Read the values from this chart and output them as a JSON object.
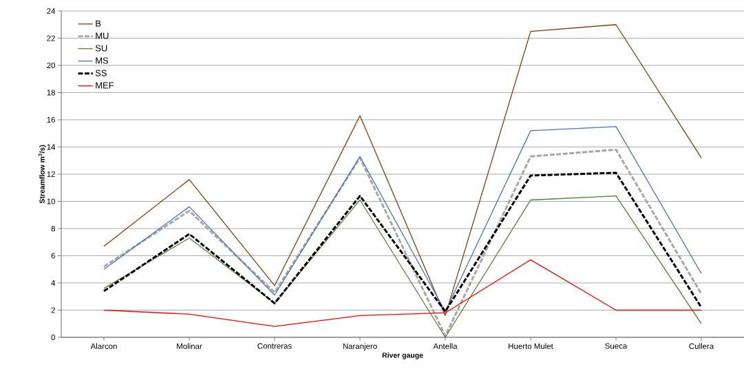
{
  "chart_data": {
    "type": "line",
    "xlabel": "River gauge",
    "ylabel": "Streamflow m$^{3}$/s)",
    "categories": [
      "Alarcon",
      "Molinar",
      "Contreras",
      "Naranjero",
      "Antella",
      "Huerto Mulet",
      "Sueca",
      "Cullera"
    ],
    "series": [
      {
        "name": "B",
        "color": "#843c0c",
        "line_style": "solid",
        "values": [
          6.7,
          11.6,
          3.8,
          16.3,
          1.6,
          22.5,
          23.0,
          13.2
        ]
      },
      {
        "name": "MU",
        "color": "#a6a6a6",
        "line_style": "dashed",
        "values": [
          5.2,
          9.3,
          3.3,
          13.2,
          0.1,
          13.3,
          13.8,
          3.2
        ]
      },
      {
        "name": "SU",
        "color": "#548235",
        "line_style": "solid",
        "values": [
          3.6,
          7.3,
          2.5,
          10.1,
          0.0,
          10.1,
          10.4,
          1.0
        ]
      },
      {
        "name": "MS",
        "color": "#4472c4",
        "line_style": "solid",
        "values": [
          5.0,
          9.6,
          3.1,
          13.3,
          1.9,
          15.2,
          15.5,
          4.7
        ]
      },
      {
        "name": "SS",
        "color": "#000000",
        "line_style": "dashed",
        "values": [
          3.4,
          7.6,
          2.5,
          10.4,
          1.9,
          11.9,
          12.1,
          2.2
        ]
      },
      {
        "name": "MEF",
        "color": "#ff0000",
        "line_style": "solid",
        "values": [
          2.0,
          1.7,
          0.8,
          1.6,
          1.8,
          5.7,
          2.0,
          2.0
        ]
      }
    ],
    "ylim": [
      0,
      24
    ],
    "yticks": [
      0,
      2,
      4,
      6,
      8,
      10,
      12,
      14,
      16,
      18,
      20,
      22,
      24
    ],
    "grid": "y",
    "legend": "top left",
    "marker": "none"
  }
}
